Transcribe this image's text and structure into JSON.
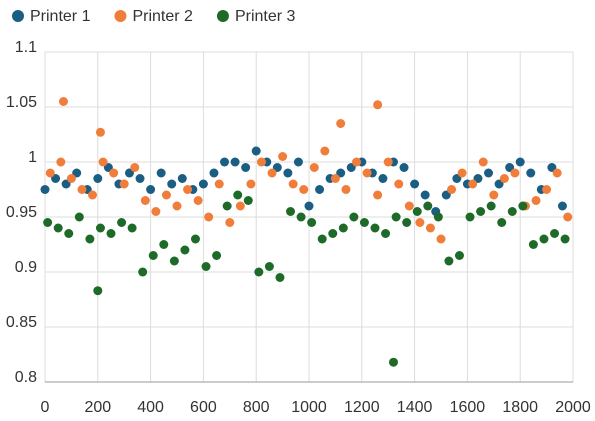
{
  "chart_data": {
    "type": "scatter",
    "series": [
      {
        "name": "Printer 1",
        "color": "#1b5e83",
        "x": [
          0,
          40,
          80,
          120,
          160,
          200,
          240,
          280,
          320,
          360,
          400,
          440,
          480,
          520,
          560,
          600,
          640,
          680,
          720,
          760,
          800,
          840,
          880,
          920,
          960,
          1000,
          1040,
          1080,
          1120,
          1160,
          1200,
          1240,
          1280,
          1320,
          1360,
          1400,
          1440,
          1480,
          1520,
          1560,
          1600,
          1640,
          1680,
          1720,
          1760,
          1800,
          1840,
          1880,
          1920,
          1960
        ],
        "values": [
          0.975,
          0.985,
          0.98,
          0.99,
          0.975,
          0.985,
          0.995,
          0.98,
          0.99,
          0.985,
          0.975,
          0.99,
          0.98,
          0.985,
          0.975,
          0.98,
          0.99,
          1.0,
          1.0,
          0.995,
          1.01,
          1.0,
          0.995,
          0.99,
          1.0,
          0.96,
          0.975,
          0.985,
          0.99,
          0.995,
          1.0,
          0.99,
          0.985,
          1.0,
          0.995,
          0.98,
          0.97,
          0.955,
          0.97,
          0.985,
          0.98,
          0.985,
          0.99,
          0.98,
          0.995,
          1.0,
          0.99,
          0.975,
          0.995,
          0.96
        ]
      },
      {
        "name": "Printer 2",
        "color": "#f07d3a",
        "x": [
          20,
          60,
          100,
          140,
          180,
          220,
          260,
          300,
          340,
          380,
          420,
          460,
          500,
          540,
          580,
          620,
          660,
          700,
          740,
          780,
          820,
          860,
          900,
          940,
          980,
          1020,
          1060,
          1100,
          1140,
          1180,
          1220,
          1260,
          1300,
          1340,
          1380,
          1420,
          1460,
          1500,
          1540,
          1580,
          1620,
          1660,
          1700,
          1740,
          1780,
          1820,
          1860,
          1900,
          1940,
          1980,
          70,
          210,
          1120,
          1260
        ],
        "values": [
          0.99,
          1.0,
          0.985,
          0.975,
          0.97,
          1.0,
          0.99,
          0.98,
          0.995,
          0.965,
          0.955,
          0.97,
          0.96,
          0.975,
          0.965,
          0.95,
          0.98,
          0.945,
          0.96,
          0.98,
          1.0,
          0.99,
          1.005,
          0.98,
          0.975,
          0.995,
          1.01,
          0.985,
          0.975,
          1.0,
          0.99,
          0.97,
          1.0,
          0.98,
          0.96,
          0.945,
          0.94,
          0.93,
          0.975,
          0.99,
          0.98,
          1.0,
          0.97,
          0.985,
          0.99,
          0.96,
          0.965,
          0.975,
          0.99,
          0.95,
          1.055,
          1.027,
          1.035,
          1.052
        ]
      },
      {
        "name": "Printer 3",
        "color": "#1e6b29",
        "x": [
          10,
          50,
          90,
          130,
          170,
          210,
          250,
          290,
          330,
          370,
          410,
          450,
          490,
          530,
          570,
          610,
          650,
          690,
          730,
          770,
          810,
          850,
          890,
          930,
          970,
          1010,
          1050,
          1090,
          1130,
          1170,
          1210,
          1250,
          1290,
          1330,
          1370,
          1410,
          1450,
          1490,
          1530,
          1570,
          1610,
          1650,
          1690,
          1730,
          1770,
          1810,
          1850,
          1890,
          1930,
          1970,
          200,
          1320
        ],
        "values": [
          0.945,
          0.94,
          0.935,
          0.95,
          0.93,
          0.94,
          0.935,
          0.945,
          0.94,
          0.9,
          0.915,
          0.925,
          0.91,
          0.92,
          0.93,
          0.905,
          0.915,
          0.96,
          0.97,
          0.965,
          0.9,
          0.905,
          0.895,
          0.955,
          0.95,
          0.945,
          0.93,
          0.935,
          0.94,
          0.95,
          0.945,
          0.94,
          0.935,
          0.95,
          0.945,
          0.955,
          0.96,
          0.95,
          0.91,
          0.915,
          0.95,
          0.955,
          0.96,
          0.945,
          0.955,
          0.96,
          0.925,
          0.93,
          0.935,
          0.93,
          0.883,
          0.818
        ]
      }
    ],
    "xlim": [
      0,
      2000
    ],
    "xticks": [
      0,
      200,
      400,
      600,
      800,
      1000,
      1200,
      1400,
      1600,
      1800,
      2000
    ],
    "ylim": [
      0.8,
      1.1
    ],
    "yticks": [
      0.8,
      0.85,
      0.9,
      0.95,
      1,
      1.05,
      1.1
    ],
    "grid": true,
    "legend": "top-left"
  }
}
